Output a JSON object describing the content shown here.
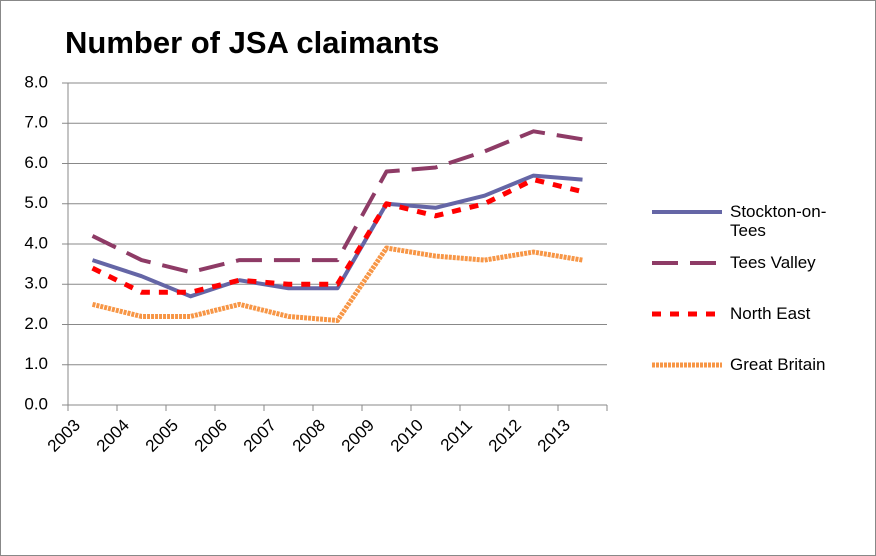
{
  "chart_data": {
    "type": "line",
    "title": "Number of JSA claimants",
    "categories": [
      "2003",
      "2004",
      "2005",
      "2006",
      "2007",
      "2008",
      "2009",
      "2010",
      "2011",
      "2012",
      "2013"
    ],
    "series": [
      {
        "name": "Stockton-on-Tees",
        "color": "#6566a6",
        "values": [
          3.6,
          3.2,
          2.7,
          3.1,
          2.9,
          2.9,
          5.0,
          4.9,
          5.2,
          5.7,
          5.6
        ]
      },
      {
        "name": "Tees Valley",
        "color": "#8e3b66",
        "values": [
          4.2,
          3.6,
          3.3,
          3.6,
          3.6,
          3.6,
          5.8,
          5.9,
          6.3,
          6.8,
          6.6
        ]
      },
      {
        "name": "North East",
        "color": "#ff0000",
        "values": [
          3.4,
          2.8,
          2.8,
          3.1,
          3.0,
          3.0,
          5.0,
          4.7,
          5.0,
          5.6,
          5.3
        ]
      },
      {
        "name": "Great Britain",
        "color": "#f79646",
        "values": [
          2.5,
          2.2,
          2.2,
          2.5,
          2.2,
          2.1,
          3.9,
          3.7,
          3.6,
          3.8,
          3.6
        ]
      }
    ],
    "ylim": [
      0,
      8
    ],
    "yticks": [
      {
        "value": 0,
        "label": "0.0"
      },
      {
        "value": 1,
        "label": "1.0"
      },
      {
        "value": 2,
        "label": "2.0"
      },
      {
        "value": 3,
        "label": "3.0"
      },
      {
        "value": 4,
        "label": "4.0"
      },
      {
        "value": 5,
        "label": "5.0"
      },
      {
        "value": 6,
        "label": "6.0"
      },
      {
        "value": 7,
        "label": "7.0"
      },
      {
        "value": 8,
        "label": "8.0"
      }
    ],
    "grid": true,
    "legend": "right"
  }
}
